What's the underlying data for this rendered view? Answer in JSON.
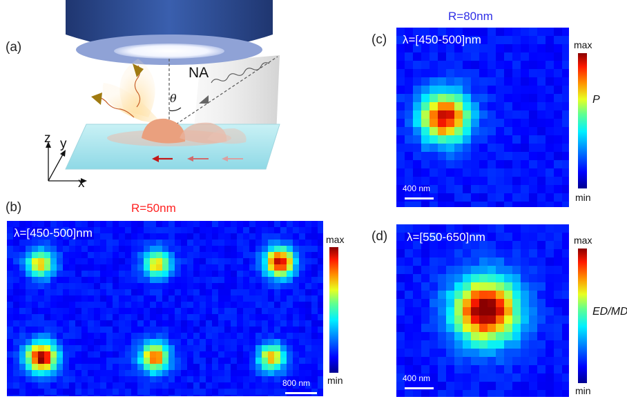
{
  "panels": {
    "a": {
      "label": "(a)",
      "na_label": "NA",
      "theta_label": "θ",
      "axis_z": "z",
      "axis_y": "y",
      "axis_x": "x"
    },
    "b": {
      "label": "(b)",
      "title": "R=50nm",
      "lambda": "λ=[450-500]nm",
      "scale": "800 nm",
      "cb_max": "max",
      "cb_min": "min"
    },
    "c": {
      "label": "(c)",
      "title": "R=80nm",
      "lambda": "λ=[450-500]nm",
      "scale": "400 nm",
      "cb_max": "max",
      "cb_min": "min",
      "cb_quantity": "P"
    },
    "d": {
      "label": "(d)",
      "lambda": "λ=[550-650]nm",
      "scale": "400 nm",
      "cb_max": "max",
      "cb_min": "min",
      "cb_quantity": "ED/MD"
    }
  },
  "colors": {
    "title_b": "#ff2020",
    "title_c": "#2f2fe6",
    "map_bg": "#0a1e8c"
  }
}
